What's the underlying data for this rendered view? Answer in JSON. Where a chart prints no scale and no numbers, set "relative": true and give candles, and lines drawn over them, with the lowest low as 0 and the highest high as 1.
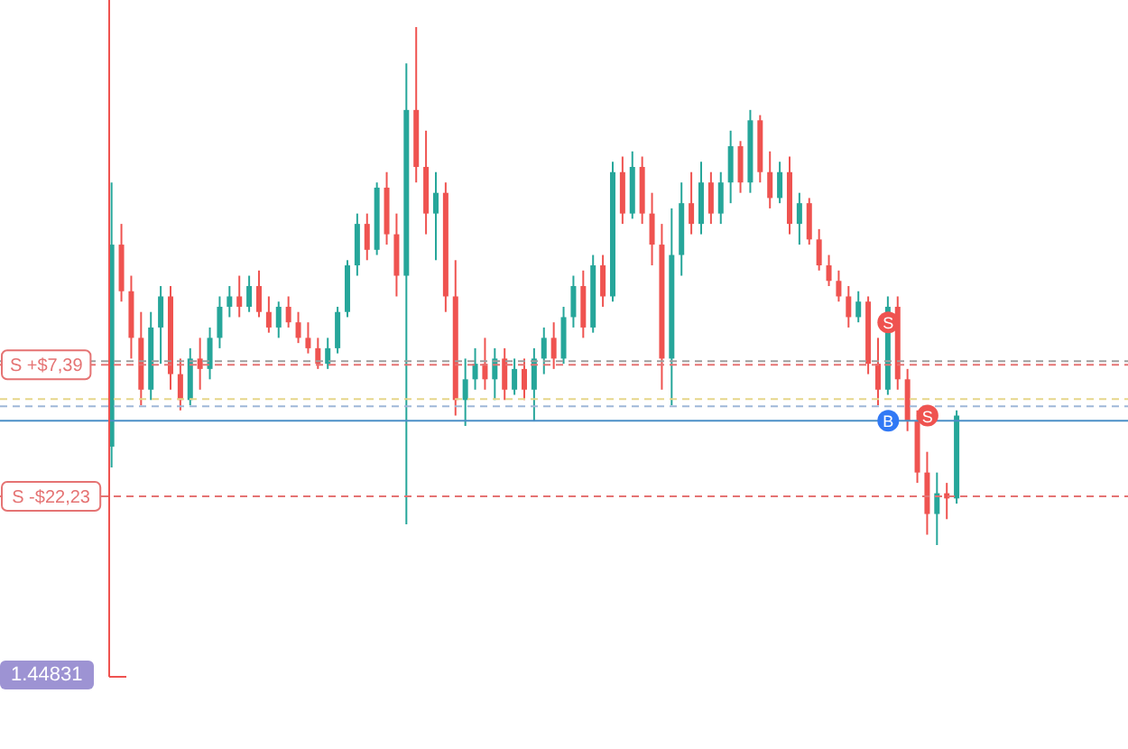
{
  "chart_data": {
    "type": "candlestick",
    "relative": true,
    "categories": [
      null,
      null,
      null,
      null,
      null,
      null,
      null,
      null,
      null,
      null,
      null,
      null,
      null,
      null,
      null,
      null,
      null,
      null,
      null,
      null,
      null,
      null,
      null,
      null,
      null,
      null,
      null,
      null,
      null,
      null,
      null,
      null,
      null,
      null,
      null,
      null,
      null,
      null,
      null,
      null,
      null,
      null,
      null,
      null,
      null,
      null,
      null,
      null,
      null,
      null,
      null,
      null,
      null,
      null,
      null,
      null,
      null,
      null,
      null,
      null,
      null,
      null,
      null,
      null,
      null,
      null,
      null,
      null,
      null,
      null,
      null,
      null,
      null,
      null,
      null,
      null,
      null,
      null,
      null,
      null,
      null,
      null,
      null,
      null,
      null,
      null,
      null
    ],
    "ohlc": [
      [
        0.19,
        0.7,
        0.15,
        0.58
      ],
      [
        0.58,
        0.62,
        0.47,
        0.49
      ],
      [
        0.49,
        0.52,
        0.36,
        0.4
      ],
      [
        0.4,
        0.45,
        0.27,
        0.3
      ],
      [
        0.3,
        0.45,
        0.28,
        0.42
      ],
      [
        0.42,
        0.5,
        0.35,
        0.48
      ],
      [
        0.48,
        0.5,
        0.3,
        0.33
      ],
      [
        0.33,
        0.36,
        0.26,
        0.28
      ],
      [
        0.28,
        0.38,
        0.27,
        0.36
      ],
      [
        0.36,
        0.4,
        0.3,
        0.34
      ],
      [
        0.34,
        0.42,
        0.32,
        0.4
      ],
      [
        0.4,
        0.48,
        0.38,
        0.46
      ],
      [
        0.46,
        0.5,
        0.44,
        0.48
      ],
      [
        0.48,
        0.52,
        0.44,
        0.46
      ],
      [
        0.46,
        0.52,
        0.45,
        0.5
      ],
      [
        0.5,
        0.53,
        0.44,
        0.45
      ],
      [
        0.45,
        0.48,
        0.41,
        0.42
      ],
      [
        0.42,
        0.47,
        0.4,
        0.46
      ],
      [
        0.46,
        0.48,
        0.42,
        0.43
      ],
      [
        0.43,
        0.45,
        0.39,
        0.4
      ],
      [
        0.4,
        0.43,
        0.37,
        0.38
      ],
      [
        0.38,
        0.4,
        0.34,
        0.35
      ],
      [
        0.35,
        0.4,
        0.34,
        0.38
      ],
      [
        0.38,
        0.46,
        0.37,
        0.45
      ],
      [
        0.45,
        0.55,
        0.44,
        0.54
      ],
      [
        0.54,
        0.64,
        0.52,
        0.62
      ],
      [
        0.62,
        0.64,
        0.55,
        0.57
      ],
      [
        0.57,
        0.7,
        0.56,
        0.69
      ],
      [
        0.69,
        0.72,
        0.58,
        0.6
      ],
      [
        0.6,
        0.64,
        0.48,
        0.52
      ],
      [
        0.52,
        0.93,
        0.04,
        0.84
      ],
      [
        0.84,
        1.0,
        0.7,
        0.73
      ],
      [
        0.73,
        0.8,
        0.6,
        0.64
      ],
      [
        0.64,
        0.72,
        0.55,
        0.68
      ],
      [
        0.68,
        0.7,
        0.45,
        0.48
      ],
      [
        0.48,
        0.55,
        0.25,
        0.28
      ],
      [
        0.28,
        0.36,
        0.23,
        0.32
      ],
      [
        0.32,
        0.38,
        0.3,
        0.35
      ],
      [
        0.35,
        0.4,
        0.3,
        0.32
      ],
      [
        0.32,
        0.38,
        0.28,
        0.36
      ],
      [
        0.36,
        0.38,
        0.28,
        0.3
      ],
      [
        0.3,
        0.36,
        0.29,
        0.34
      ],
      [
        0.34,
        0.36,
        0.28,
        0.3
      ],
      [
        0.3,
        0.38,
        0.24,
        0.36
      ],
      [
        0.36,
        0.42,
        0.33,
        0.4
      ],
      [
        0.4,
        0.43,
        0.34,
        0.36
      ],
      [
        0.36,
        0.46,
        0.35,
        0.44
      ],
      [
        0.44,
        0.52,
        0.42,
        0.5
      ],
      [
        0.5,
        0.53,
        0.4,
        0.42
      ],
      [
        0.42,
        0.56,
        0.41,
        0.54
      ],
      [
        0.54,
        0.56,
        0.46,
        0.48
      ],
      [
        0.48,
        0.74,
        0.47,
        0.72
      ],
      [
        0.72,
        0.75,
        0.62,
        0.64
      ],
      [
        0.64,
        0.76,
        0.63,
        0.73
      ],
      [
        0.73,
        0.75,
        0.62,
        0.64
      ],
      [
        0.64,
        0.68,
        0.54,
        0.58
      ],
      [
        0.58,
        0.62,
        0.3,
        0.36
      ],
      [
        0.36,
        0.65,
        0.27,
        0.56
      ],
      [
        0.56,
        0.7,
        0.52,
        0.66
      ],
      [
        0.66,
        0.72,
        0.6,
        0.62
      ],
      [
        0.62,
        0.74,
        0.6,
        0.7
      ],
      [
        0.7,
        0.72,
        0.62,
        0.64
      ],
      [
        0.64,
        0.72,
        0.62,
        0.7
      ],
      [
        0.7,
        0.8,
        0.66,
        0.77
      ],
      [
        0.77,
        0.78,
        0.68,
        0.7
      ],
      [
        0.7,
        0.84,
        0.68,
        0.82
      ],
      [
        0.82,
        0.83,
        0.7,
        0.72
      ],
      [
        0.72,
        0.76,
        0.65,
        0.67
      ],
      [
        0.67,
        0.74,
        0.66,
        0.72
      ],
      [
        0.72,
        0.75,
        0.6,
        0.62
      ],
      [
        0.62,
        0.68,
        0.58,
        0.66
      ],
      [
        0.66,
        0.67,
        0.58,
        0.59
      ],
      [
        0.59,
        0.61,
        0.53,
        0.54
      ],
      [
        0.54,
        0.56,
        0.5,
        0.51
      ],
      [
        0.51,
        0.53,
        0.47,
        0.48
      ],
      [
        0.48,
        0.5,
        0.42,
        0.44
      ],
      [
        0.44,
        0.49,
        0.43,
        0.47
      ],
      [
        0.47,
        0.48,
        0.33,
        0.35
      ],
      [
        0.35,
        0.4,
        0.27,
        0.3
      ],
      [
        0.3,
        0.48,
        0.29,
        0.46
      ],
      [
        0.46,
        0.48,
        0.3,
        0.32
      ],
      [
        0.32,
        0.34,
        0.22,
        0.24
      ],
      [
        0.24,
        0.26,
        0.12,
        0.14
      ],
      [
        0.14,
        0.18,
        0.02,
        0.06
      ],
      [
        0.06,
        0.14,
        0.0,
        0.1
      ],
      [
        0.1,
        0.12,
        0.05,
        0.09
      ],
      [
        0.09,
        0.26,
        0.08,
        0.25
      ]
    ],
    "series": [
      {
        "type": "scatter",
        "name": "S",
        "color": "#ef5350",
        "values": [
          null,
          null,
          null,
          null,
          null,
          null,
          null,
          null,
          null,
          null,
          null,
          null,
          null,
          null,
          null,
          null,
          null,
          null,
          null,
          null,
          null,
          null,
          null,
          null,
          null,
          null,
          null,
          null,
          null,
          null,
          null,
          null,
          null,
          null,
          null,
          null,
          null,
          null,
          null,
          null,
          null,
          null,
          null,
          null,
          null,
          null,
          null,
          null,
          null,
          null,
          null,
          null,
          null,
          null,
          null,
          null,
          null,
          null,
          null,
          null,
          null,
          null,
          null,
          null,
          null,
          null,
          null,
          null,
          null,
          null,
          null,
          null,
          null,
          null,
          null,
          null,
          null,
          null,
          null,
          0.43,
          null,
          null,
          null,
          0.25,
          null,
          null,
          null
        ]
      },
      {
        "type": "scatter",
        "name": "B",
        "color": "#3179f5",
        "values": [
          null,
          null,
          null,
          null,
          null,
          null,
          null,
          null,
          null,
          null,
          null,
          null,
          null,
          null,
          null,
          null,
          null,
          null,
          null,
          null,
          null,
          null,
          null,
          null,
          null,
          null,
          null,
          null,
          null,
          null,
          null,
          null,
          null,
          null,
          null,
          null,
          null,
          null,
          null,
          null,
          null,
          null,
          null,
          null,
          null,
          null,
          null,
          null,
          null,
          null,
          null,
          null,
          null,
          null,
          null,
          null,
          null,
          null,
          null,
          null,
          null,
          null,
          null,
          null,
          null,
          null,
          null,
          null,
          null,
          null,
          null,
          null,
          null,
          null,
          null,
          null,
          null,
          null,
          null,
          0.24,
          null,
          null,
          null,
          null,
          null,
          null,
          null
        ]
      }
    ],
    "ref_lines": [
      {
        "axis": "y",
        "value": 0.355,
        "color": "#9e9e9e",
        "line_style": "dashed"
      },
      {
        "axis": "y",
        "value": 0.348,
        "label": "S +$7,39",
        "color": "#e57373",
        "line_style": "dashed"
      },
      {
        "axis": "y",
        "value": 0.282,
        "color": "#e6d68a",
        "line_style": "dashed"
      },
      {
        "axis": "y",
        "value": 0.268,
        "color": "#9fb8d8",
        "line_style": "dashed"
      },
      {
        "axis": "y",
        "value": 0.24,
        "color": "#4a8fc7",
        "line_style": "solid"
      },
      {
        "axis": "y",
        "value": 0.094,
        "label": "S -$22,23",
        "color": "#e57373",
        "line_style": "dashed"
      }
    ],
    "annotations": [
      "1.44831"
    ],
    "grid": false,
    "legend": false
  }
}
